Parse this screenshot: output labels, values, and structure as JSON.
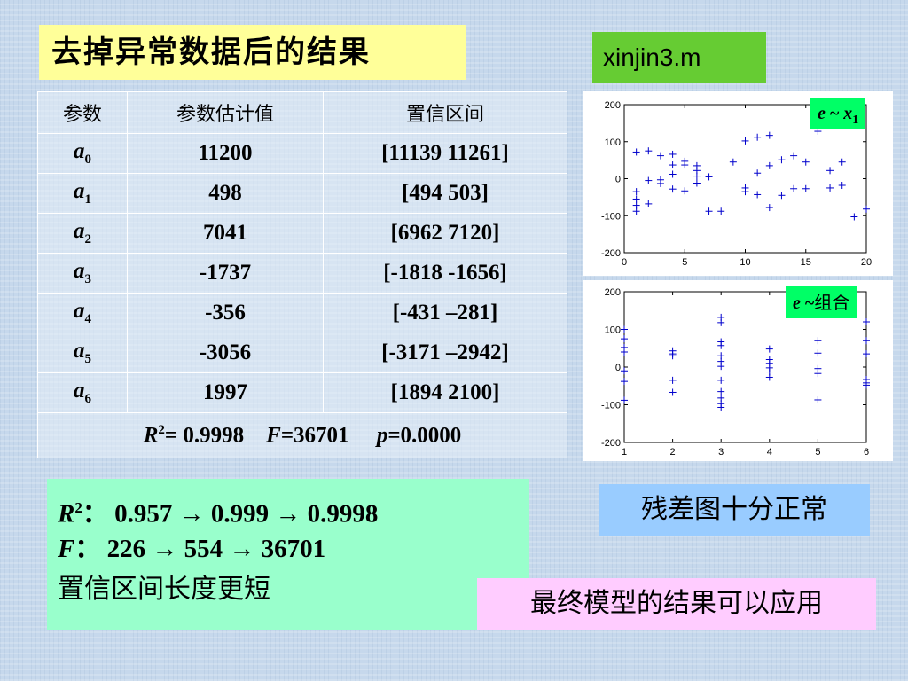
{
  "title": "去掉异常数据后的结果",
  "filename": "xinjin3.m",
  "table": {
    "headers": [
      "参数",
      "参数估计值",
      "置信区间"
    ],
    "rows": [
      {
        "sym": "a",
        "sub": "0",
        "estimate": "11200",
        "ci": "[11139  11261]"
      },
      {
        "sym": "a",
        "sub": "1",
        "estimate": "498",
        "ci": "[494  503]"
      },
      {
        "sym": "a",
        "sub": "2",
        "estimate": "7041",
        "ci": "[6962  7120]"
      },
      {
        "sym": "a",
        "sub": "3",
        "estimate": "-1737",
        "ci": "[-1818  -1656]"
      },
      {
        "sym": "a",
        "sub": "4",
        "estimate": "-356",
        "ci": "[-431  –281]"
      },
      {
        "sym": "a",
        "sub": "5",
        "estimate": "-3056",
        "ci": "[-3171 –2942]"
      },
      {
        "sym": "a",
        "sub": "6",
        "estimate": "1997",
        "ci": "[1894  2100]"
      }
    ],
    "summary": {
      "r2_label": "R",
      "r2_sup": "2",
      "r2_value": "= 0.9998",
      "f_label": "F",
      "f_value": "=36701",
      "p_label": "p",
      "p_value": "=0.0000"
    }
  },
  "comparison": {
    "r2_label": "R",
    "r2_sup": "2",
    "r2_text": "：  0.957 → 0.999 → 0.9998",
    "f_label": "F",
    "f_text": "：  226 → 554 → 36701",
    "ci_text": "置信区间长度更短"
  },
  "notes": {
    "residual_normal": "残差图十分正常",
    "final": "最终模型的结果可以应用"
  },
  "plot_labels": {
    "plot1_e": "e",
    "plot1_tilde": " ~ ",
    "plot1_x": "x",
    "plot1_x_sub": "1",
    "plot2_e": "e",
    "plot2_tilde": " ~",
    "plot2_cn": "组合"
  },
  "chart_data": [
    {
      "type": "scatter",
      "xlim": [
        0,
        20
      ],
      "ylim": [
        -200,
        200
      ],
      "xticks": [
        0,
        5,
        10,
        15,
        20
      ],
      "yticks": [
        -200,
        -100,
        0,
        100,
        200
      ],
      "marker": "+",
      "color": "#0000cc",
      "points": [
        [
          1,
          72
        ],
        [
          1,
          -35
        ],
        [
          1,
          -55
        ],
        [
          1,
          -72
        ],
        [
          1,
          -88
        ],
        [
          2,
          75
        ],
        [
          2,
          -5
        ],
        [
          2,
          -68
        ],
        [
          3,
          62
        ],
        [
          3,
          -3
        ],
        [
          3,
          -13
        ],
        [
          4,
          66
        ],
        [
          4,
          37
        ],
        [
          4,
          12
        ],
        [
          4,
          -28
        ],
        [
          5,
          47
        ],
        [
          5,
          37
        ],
        [
          5,
          -33
        ],
        [
          6,
          35
        ],
        [
          6,
          22
        ],
        [
          6,
          7
        ],
        [
          6,
          -12
        ],
        [
          7,
          5
        ],
        [
          7,
          -88
        ],
        [
          8,
          -88
        ],
        [
          9,
          45
        ],
        [
          10,
          102
        ],
        [
          10,
          -25
        ],
        [
          10,
          -35
        ],
        [
          11,
          112
        ],
        [
          11,
          15
        ],
        [
          11,
          -43
        ],
        [
          12,
          117
        ],
        [
          12,
          35
        ],
        [
          12,
          -78
        ],
        [
          13,
          51
        ],
        [
          13,
          -45
        ],
        [
          14,
          62
        ],
        [
          14,
          -27
        ],
        [
          15,
          45
        ],
        [
          15,
          -27
        ],
        [
          16,
          128
        ],
        [
          17,
          22
        ],
        [
          17,
          -25
        ],
        [
          18,
          45
        ],
        [
          18,
          -18
        ],
        [
          19,
          -103
        ],
        [
          20,
          -82
        ]
      ]
    },
    {
      "type": "scatter",
      "xlim": [
        1,
        6
      ],
      "ylim": [
        -200,
        200
      ],
      "xticks": [
        1,
        2,
        3,
        4,
        5,
        6
      ],
      "yticks": [
        -200,
        -100,
        0,
        100,
        200
      ],
      "marker": "+",
      "color": "#0000cc",
      "points": [
        [
          1,
          100
        ],
        [
          1,
          75
        ],
        [
          1,
          52
        ],
        [
          1,
          40
        ],
        [
          1,
          -10
        ],
        [
          1,
          -38
        ],
        [
          1,
          -88
        ],
        [
          2,
          43
        ],
        [
          2,
          35
        ],
        [
          2,
          30
        ],
        [
          2,
          -35
        ],
        [
          2,
          -67
        ],
        [
          3,
          132
        ],
        [
          3,
          118
        ],
        [
          3,
          67
        ],
        [
          3,
          57
        ],
        [
          3,
          30
        ],
        [
          3,
          15
        ],
        [
          3,
          2
        ],
        [
          3,
          -35
        ],
        [
          3,
          -65
        ],
        [
          3,
          -82
        ],
        [
          3,
          -97
        ],
        [
          3,
          -107
        ],
        [
          4,
          48
        ],
        [
          4,
          20
        ],
        [
          4,
          10
        ],
        [
          4,
          -2
        ],
        [
          4,
          -13
        ],
        [
          4,
          -27
        ],
        [
          5,
          70
        ],
        [
          5,
          37
        ],
        [
          5,
          -4
        ],
        [
          5,
          -17
        ],
        [
          5,
          -87
        ],
        [
          6,
          120
        ],
        [
          6,
          70
        ],
        [
          6,
          35
        ],
        [
          6,
          -33
        ],
        [
          6,
          -42
        ],
        [
          6,
          -48
        ]
      ]
    }
  ]
}
